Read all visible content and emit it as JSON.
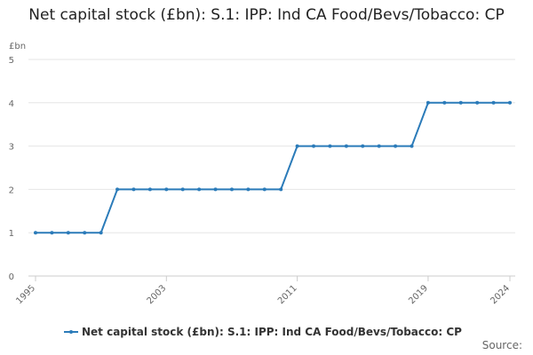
{
  "chart_data": {
    "type": "line",
    "title": "Net capital stock (£bn): S.1: IPP: Ind CA Food/Bevs/Tobacco: CP",
    "y_label": "£bn",
    "x": [
      1995,
      1996,
      1997,
      1998,
      1999,
      2000,
      2001,
      2002,
      2003,
      2004,
      2005,
      2006,
      2007,
      2008,
      2009,
      2010,
      2011,
      2012,
      2013,
      2014,
      2015,
      2016,
      2017,
      2018,
      2019,
      2020,
      2021,
      2022,
      2023,
      2024
    ],
    "series": [
      {
        "name": "Net capital stock (£bn): S.1: IPP: Ind CA Food/Bevs/Tobacco: CP",
        "color": "#2b7bb9",
        "values": [
          1,
          1,
          1,
          1,
          1,
          2,
          2,
          2,
          2,
          2,
          2,
          2,
          2,
          2,
          2,
          2,
          3,
          3,
          3,
          3,
          3,
          3,
          3,
          3,
          4,
          4,
          4,
          4,
          4,
          4
        ]
      }
    ],
    "xlim": [
      1995,
      2024
    ],
    "xticks": [
      1995,
      2003,
      2011,
      2019,
      2024
    ],
    "ylim": [
      0,
      5
    ],
    "yticks": [
      0,
      1,
      2,
      3,
      4,
      5
    ],
    "grid": true,
    "source": "Source:"
  }
}
